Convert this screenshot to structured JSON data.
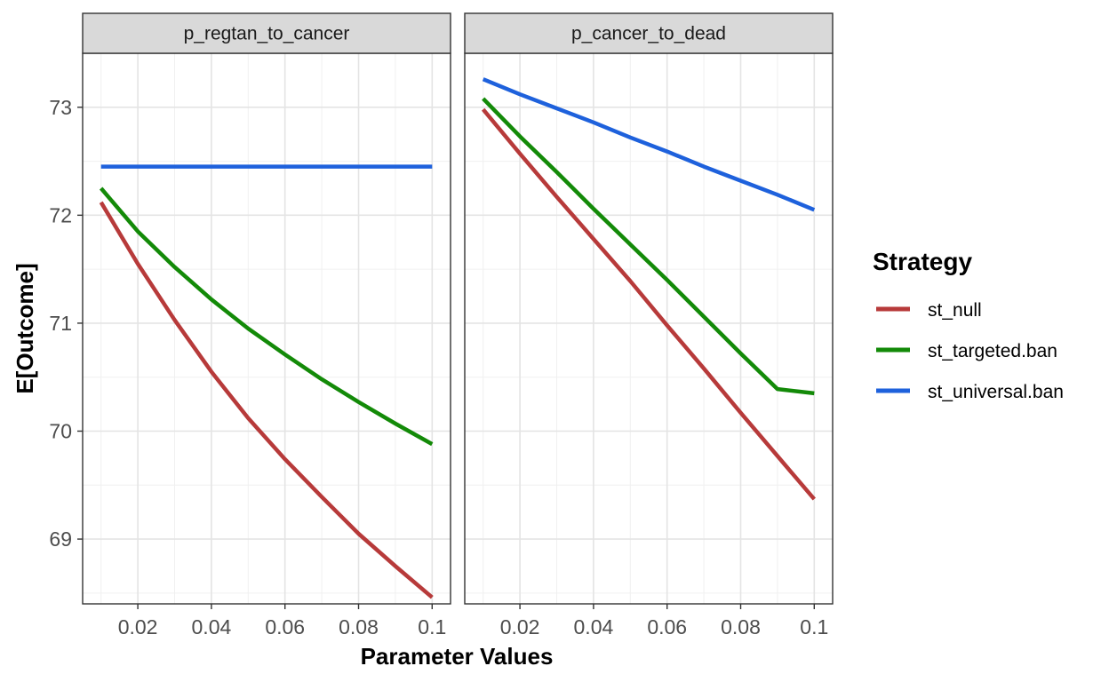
{
  "chart_data": {
    "type": "line",
    "xlabel": "Parameter Values",
    "ylabel": "E[Outcome]",
    "xlim": [
      0.005,
      0.105
    ],
    "ylim": [
      68.4,
      73.5
    ],
    "x_ticks": [
      {
        "value": 0.02,
        "label": "0.02"
      },
      {
        "value": 0.04,
        "label": "0.04"
      },
      {
        "value": 0.06,
        "label": "0.06"
      },
      {
        "value": 0.08,
        "label": "0.08"
      },
      {
        "value": 0.1,
        "label": "0.1"
      }
    ],
    "y_ticks": [
      {
        "value": 69,
        "label": "69"
      },
      {
        "value": 70,
        "label": "70"
      },
      {
        "value": 71,
        "label": "71"
      },
      {
        "value": 72,
        "label": "72"
      },
      {
        "value": 73,
        "label": "73"
      }
    ],
    "grid": true,
    "legend": {
      "title": "Strategy",
      "position": "right",
      "entries": [
        {
          "name": "st_null",
          "color": "#B73A3A"
        },
        {
          "name": "st_targeted.ban",
          "color": "#138A08"
        },
        {
          "name": "st_universal.ban",
          "color": "#1E61DC"
        }
      ]
    },
    "panels": [
      {
        "title": "p_regtan_to_cancer",
        "x": [
          0.01,
          0.02,
          0.03,
          0.04,
          0.05,
          0.06,
          0.07,
          0.08,
          0.09,
          0.1
        ],
        "series": [
          {
            "name": "st_null",
            "color": "#B73A3A",
            "values": [
              72.12,
              71.55,
              71.03,
              70.55,
              70.12,
              69.74,
              69.39,
              69.05,
              68.75,
              68.46
            ]
          },
          {
            "name": "st_targeted.ban",
            "color": "#138A08",
            "values": [
              72.25,
              71.85,
              71.52,
              71.22,
              70.95,
              70.71,
              70.48,
              70.27,
              70.07,
              69.88
            ]
          },
          {
            "name": "st_universal.ban",
            "color": "#1E61DC",
            "values": [
              72.45,
              72.45,
              72.45,
              72.45,
              72.45,
              72.45,
              72.45,
              72.45,
              72.45,
              72.45
            ]
          }
        ]
      },
      {
        "title": "p_cancer_to_dead",
        "x": [
          0.01,
          0.02,
          0.03,
          0.04,
          0.05,
          0.06,
          0.07,
          0.08,
          0.09,
          0.1
        ],
        "series": [
          {
            "name": "st_null",
            "color": "#B73A3A",
            "values": [
              72.98,
              72.57,
              72.17,
              71.78,
              71.39,
              70.98,
              70.58,
              70.17,
              69.77,
              69.37
            ]
          },
          {
            "name": "st_targeted.ban",
            "color": "#138A08",
            "values": [
              73.08,
              72.73,
              72.4,
              72.06,
              71.73,
              71.4,
              71.06,
              70.72,
              70.39,
              70.35
            ]
          },
          {
            "name": "st_universal.ban",
            "color": "#1E61DC",
            "values": [
              73.26,
              73.12,
              72.99,
              72.86,
              72.72,
              72.59,
              72.45,
              72.32,
              72.19,
              72.05
            ]
          }
        ]
      }
    ]
  }
}
